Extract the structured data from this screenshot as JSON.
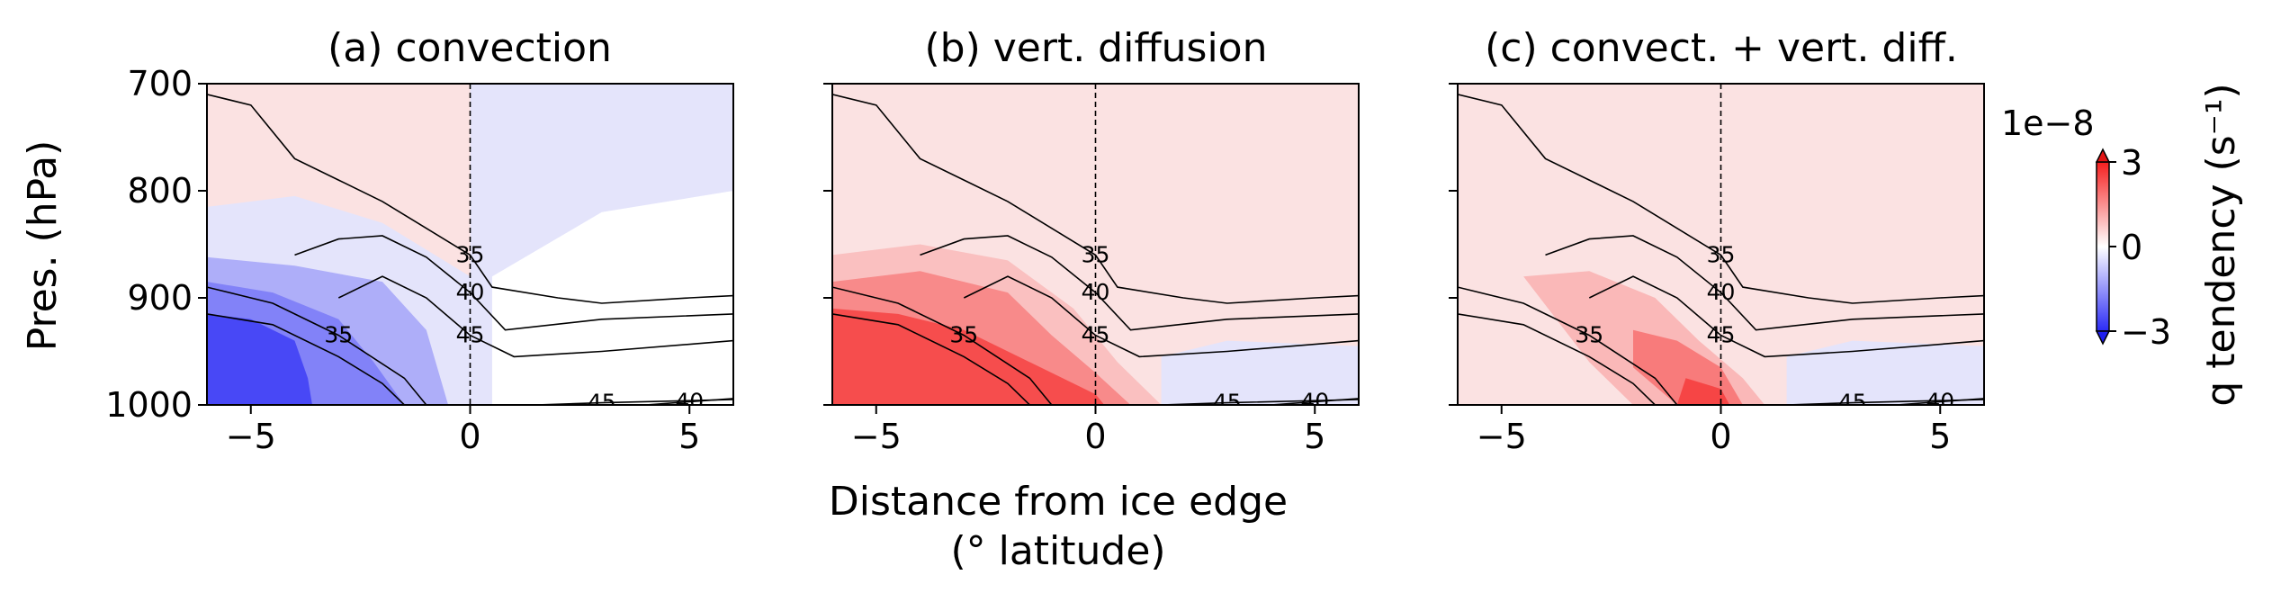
{
  "figure": {
    "xlabel_line1": "Distance from ice edge",
    "xlabel_line2": "(° latitude)",
    "ylabel": "Pres. (hPa)",
    "colorbar": {
      "label": "q tendency (s⁻¹)",
      "multiplier": "1e−8",
      "ticks": [
        "3",
        "0",
        "−3"
      ],
      "min": -3,
      "max": 3,
      "colors": {
        "neg_strong": "#2b2bf5",
        "neg_light": "#e4e4fb",
        "zero": "#ffffff",
        "pos_light": "#fbe2e2",
        "pos_strong": "#f51f1f"
      }
    }
  },
  "chart_data": [
    {
      "type": "contour",
      "title": "(a) convection",
      "xlim": [
        -6,
        6
      ],
      "ylim": [
        1000,
        700
      ],
      "xticks": [
        "−5",
        "0",
        "5"
      ],
      "yticks": [
        "700",
        "800",
        "900",
        "1000"
      ],
      "ice_edge_x": 0,
      "fill_regions": [
        {
          "level": 0.4,
          "points": [
            [
              -6,
              700
            ],
            [
              0,
              700
            ],
            [
              0,
              1000
            ],
            [
              -6,
              1000
            ]
          ]
        },
        {
          "level": -0.4,
          "points": [
            [
              0,
              700
            ],
            [
              6,
              700
            ],
            [
              6,
              800
            ],
            [
              3,
              820
            ],
            [
              0.5,
              880
            ],
            [
              0.5,
              1000
            ],
            [
              0,
              1000
            ]
          ]
        },
        {
          "level": -0.4,
          "points": [
            [
              -6,
              815
            ],
            [
              -4,
              805
            ],
            [
              -2,
              830
            ],
            [
              0,
              880
            ],
            [
              0,
              1000
            ],
            [
              -6,
              1000
            ]
          ]
        },
        {
          "level": -1.2,
          "points": [
            [
              -6,
              862
            ],
            [
              -4,
              870
            ],
            [
              -2,
              885
            ],
            [
              -1,
              930
            ],
            [
              -0.5,
              1000
            ],
            [
              -6,
              1000
            ]
          ]
        },
        {
          "level": -1.8,
          "points": [
            [
              -6,
              885
            ],
            [
              -4.5,
              895
            ],
            [
              -3,
              920
            ],
            [
              -2.2,
              960
            ],
            [
              -1.5,
              1000
            ],
            [
              -6,
              1000
            ]
          ]
        },
        {
          "level": -2.6,
          "points": [
            [
              -6,
              915
            ],
            [
              -5,
              920
            ],
            [
              -4,
              940
            ],
            [
              -3.7,
              975
            ],
            [
              -3.6,
              1000
            ],
            [
              -6,
              1000
            ]
          ]
        }
      ],
      "contours": [
        {
          "label": "35",
          "points": [
            [
              -6,
              710
            ],
            [
              -5,
              720
            ],
            [
              -4,
              770
            ],
            [
              -3,
              790
            ],
            [
              -2,
              810
            ],
            [
              -1,
              835
            ],
            [
              0,
              860
            ],
            [
              0.5,
              890
            ],
            [
              2,
              900
            ],
            [
              3,
              905
            ],
            [
              5,
              900
            ],
            [
              6,
              898
            ]
          ]
        },
        {
          "label": "40",
          "points": [
            [
              -4,
              860
            ],
            [
              -3,
              845
            ],
            [
              -2,
              842
            ],
            [
              -1,
              862
            ],
            [
              0,
              895
            ],
            [
              0.8,
              930
            ],
            [
              3,
              920
            ],
            [
              6,
              915
            ]
          ]
        },
        {
          "label": "45",
          "points": [
            [
              -3,
              900
            ],
            [
              -2,
              880
            ],
            [
              -1,
              900
            ],
            [
              0,
              935
            ],
            [
              1,
              955
            ],
            [
              3,
              950
            ],
            [
              6,
              940
            ]
          ]
        },
        {
          "label": "35",
          "points": [
            [
              -6,
              890
            ],
            [
              -4.5,
              905
            ],
            [
              -3,
              935
            ],
            [
              -1.5,
              975
            ],
            [
              -1,
              1000
            ]
          ]
        },
        {
          "label": "",
          "points": [
            [
              -6,
              915
            ],
            [
              -4.5,
              925
            ],
            [
              -3,
              955
            ],
            [
              -2,
              980
            ],
            [
              -1.5,
              1000
            ]
          ]
        },
        {
          "label": "45",
          "points": [
            [
              1.5,
              1000
            ],
            [
              3,
              998
            ],
            [
              6,
              995
            ]
          ]
        },
        {
          "label": "40",
          "points": [
            [
              4,
              1000
            ],
            [
              5,
              997
            ],
            [
              6,
              994
            ]
          ]
        }
      ]
    },
    {
      "type": "contour",
      "title": "(b) vert. diffusion",
      "xlim": [
        -6,
        6
      ],
      "ylim": [
        1000,
        700
      ],
      "xticks": [
        "−5",
        "0",
        "5"
      ],
      "yticks": [
        "700",
        "800",
        "900",
        "1000"
      ],
      "ice_edge_x": 0,
      "fill_regions": [
        {
          "level": 0.4,
          "points": [
            [
              -6,
              700
            ],
            [
              6,
              700
            ],
            [
              6,
              1000
            ],
            [
              -6,
              1000
            ]
          ]
        },
        {
          "level": -0.4,
          "points": [
            [
              1.5,
              1000
            ],
            [
              1.5,
              955
            ],
            [
              3,
              940
            ],
            [
              6,
              945
            ],
            [
              6,
              1000
            ]
          ]
        },
        {
          "level": 0.9,
          "points": [
            [
              -6,
              860
            ],
            [
              -4,
              850
            ],
            [
              -2,
              865
            ],
            [
              -0.5,
              910
            ],
            [
              0.5,
              960
            ],
            [
              1.5,
              1000
            ],
            [
              -6,
              1000
            ]
          ]
        },
        {
          "level": 1.6,
          "points": [
            [
              -6,
              885
            ],
            [
              -4,
              875
            ],
            [
              -2,
              895
            ],
            [
              -1,
              935
            ],
            [
              0,
              970
            ],
            [
              0.8,
              1000
            ],
            [
              -6,
              1000
            ]
          ]
        },
        {
          "level": 2.4,
          "points": [
            [
              -6,
              910
            ],
            [
              -4.5,
              915
            ],
            [
              -3,
              930
            ],
            [
              -1.5,
              960
            ],
            [
              0,
              990
            ],
            [
              0.2,
              1000
            ],
            [
              -6,
              1000
            ]
          ]
        }
      ],
      "contours": [
        {
          "label": "35",
          "points": [
            [
              -6,
              710
            ],
            [
              -5,
              720
            ],
            [
              -4,
              770
            ],
            [
              -3,
              790
            ],
            [
              -2,
              810
            ],
            [
              -1,
              835
            ],
            [
              0,
              860
            ],
            [
              0.5,
              890
            ],
            [
              2,
              900
            ],
            [
              3,
              905
            ],
            [
              5,
              900
            ],
            [
              6,
              898
            ]
          ]
        },
        {
          "label": "40",
          "points": [
            [
              -4,
              860
            ],
            [
              -3,
              845
            ],
            [
              -2,
              842
            ],
            [
              -1,
              862
            ],
            [
              0,
              895
            ],
            [
              0.8,
              930
            ],
            [
              3,
              920
            ],
            [
              6,
              915
            ]
          ]
        },
        {
          "label": "45",
          "points": [
            [
              -3,
              900
            ],
            [
              -2,
              880
            ],
            [
              -1,
              900
            ],
            [
              0,
              935
            ],
            [
              1,
              955
            ],
            [
              3,
              950
            ],
            [
              6,
              940
            ]
          ]
        },
        {
          "label": "35",
          "points": [
            [
              -6,
              890
            ],
            [
              -4.5,
              905
            ],
            [
              -3,
              935
            ],
            [
              -1.5,
              975
            ],
            [
              -1,
              1000
            ]
          ]
        },
        {
          "label": "",
          "points": [
            [
              -6,
              915
            ],
            [
              -4.5,
              925
            ],
            [
              -3,
              955
            ],
            [
              -2,
              980
            ],
            [
              -1.5,
              1000
            ]
          ]
        },
        {
          "label": "45",
          "points": [
            [
              1.5,
              1000
            ],
            [
              3,
              998
            ],
            [
              6,
              995
            ]
          ]
        },
        {
          "label": "40",
          "points": [
            [
              4,
              1000
            ],
            [
              5,
              997
            ],
            [
              6,
              994
            ]
          ]
        }
      ]
    },
    {
      "type": "contour",
      "title": "(c) convect. + vert. diff.",
      "xlim": [
        -6,
        6
      ],
      "ylim": [
        1000,
        700
      ],
      "xticks": [
        "−5",
        "0",
        "5"
      ],
      "yticks": [
        "700",
        "800",
        "900",
        "1000"
      ],
      "ice_edge_x": 0,
      "fill_regions": [
        {
          "level": 0.4,
          "points": [
            [
              -6,
              700
            ],
            [
              6,
              700
            ],
            [
              6,
              1000
            ],
            [
              -6,
              1000
            ]
          ]
        },
        {
          "level": -0.4,
          "points": [
            [
              1.5,
              1000
            ],
            [
              1.5,
              955
            ],
            [
              3,
              940
            ],
            [
              6,
              945
            ],
            [
              6,
              1000
            ]
          ]
        },
        {
          "level": 1.0,
          "points": [
            [
              -4.5,
              880
            ],
            [
              -3,
              875
            ],
            [
              -1.5,
              900
            ],
            [
              -0.5,
              940
            ],
            [
              0.5,
              975
            ],
            [
              1,
              1000
            ],
            [
              -2,
              1000
            ],
            [
              -3,
              960
            ]
          ]
        },
        {
          "level": 1.8,
          "points": [
            [
              -2,
              930
            ],
            [
              -1,
              940
            ],
            [
              0,
              965
            ],
            [
              0.5,
              1000
            ],
            [
              -1,
              1000
            ],
            [
              -2,
              965
            ]
          ]
        },
        {
          "level": 2.5,
          "points": [
            [
              -0.8,
              975
            ],
            [
              0,
              985
            ],
            [
              0.2,
              1000
            ],
            [
              -1,
              1000
            ]
          ]
        }
      ],
      "contours": [
        {
          "label": "35",
          "points": [
            [
              -6,
              710
            ],
            [
              -5,
              720
            ],
            [
              -4,
              770
            ],
            [
              -3,
              790
            ],
            [
              -2,
              810
            ],
            [
              -1,
              835
            ],
            [
              0,
              860
            ],
            [
              0.5,
              890
            ],
            [
              2,
              900
            ],
            [
              3,
              905
            ],
            [
              5,
              900
            ],
            [
              6,
              898
            ]
          ]
        },
        {
          "label": "40",
          "points": [
            [
              -4,
              860
            ],
            [
              -3,
              845
            ],
            [
              -2,
              842
            ],
            [
              -1,
              862
            ],
            [
              0,
              895
            ],
            [
              0.8,
              930
            ],
            [
              3,
              920
            ],
            [
              6,
              915
            ]
          ]
        },
        {
          "label": "45",
          "points": [
            [
              -3,
              900
            ],
            [
              -2,
              880
            ],
            [
              -1,
              900
            ],
            [
              0,
              935
            ],
            [
              1,
              955
            ],
            [
              3,
              950
            ],
            [
              6,
              940
            ]
          ]
        },
        {
          "label": "35",
          "points": [
            [
              -6,
              890
            ],
            [
              -4.5,
              905
            ],
            [
              -3,
              935
            ],
            [
              -1.5,
              975
            ],
            [
              -1,
              1000
            ]
          ]
        },
        {
          "label": "",
          "points": [
            [
              -6,
              915
            ],
            [
              -4.5,
              925
            ],
            [
              -3,
              955
            ],
            [
              -2,
              980
            ],
            [
              -1.5,
              1000
            ]
          ]
        },
        {
          "label": "45",
          "points": [
            [
              1.5,
              1000
            ],
            [
              3,
              998
            ],
            [
              6,
              995
            ]
          ]
        },
        {
          "label": "40",
          "points": [
            [
              4,
              1000
            ],
            [
              5,
              997
            ],
            [
              6,
              994
            ]
          ]
        }
      ]
    }
  ]
}
